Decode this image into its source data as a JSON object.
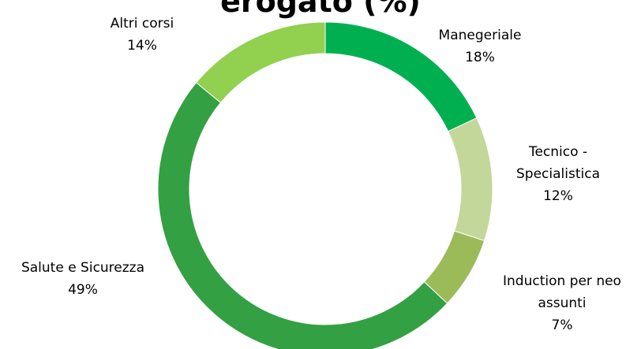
{
  "chart_data": {
    "type": "donut",
    "title": "erogato (%)",
    "categories": [
      "Manegeriale",
      "Tecnico - Specialistica",
      "Induction per neo assunti",
      "Salute e Sicurezza",
      "Altri corsi"
    ],
    "values": [
      18,
      12,
      7,
      49,
      14
    ],
    "value_labels": [
      "18%",
      "12%",
      "7%",
      "49%",
      "14%"
    ],
    "colors": [
      "#00b050",
      "#c4d79b",
      "#9bbb59",
      "#33a043",
      "#92d050"
    ]
  }
}
